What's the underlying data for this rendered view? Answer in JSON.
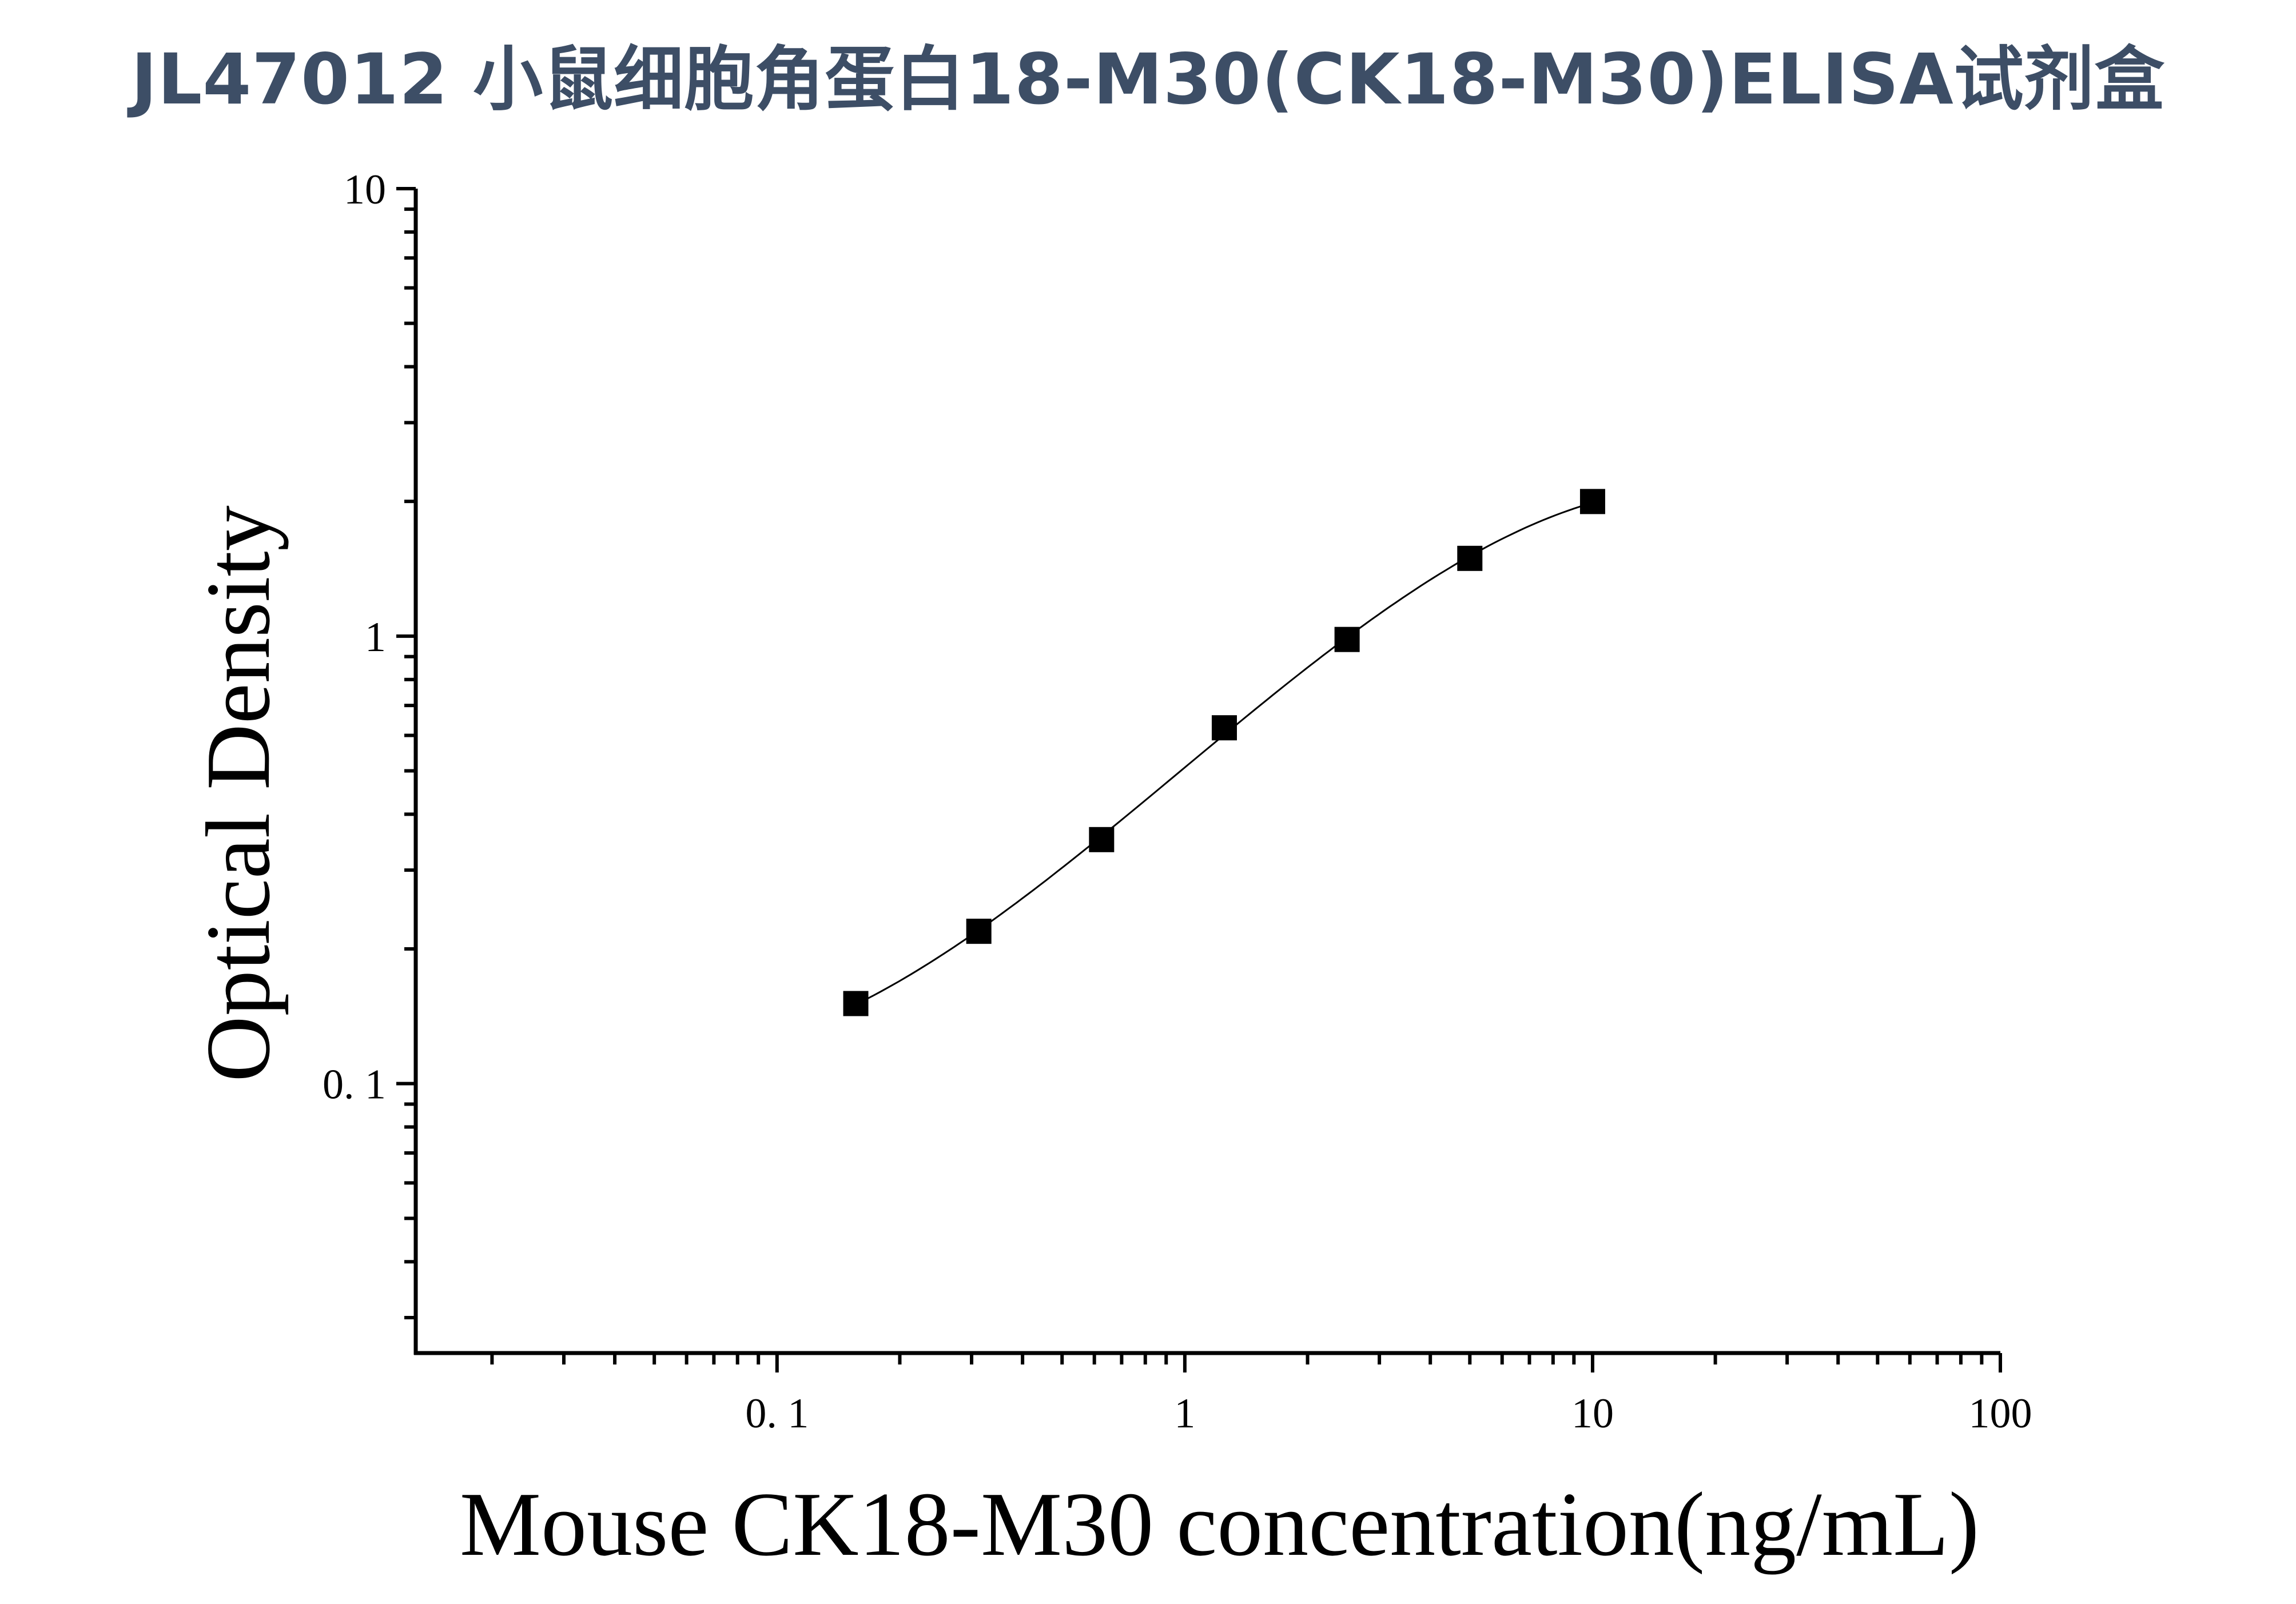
{
  "title": "JL47012 小鼠细胞角蛋白18-M30(CK18-M30)ELISA试剂盒",
  "chart_data": {
    "type": "scatter",
    "title": "JL47012 小鼠细胞角蛋白18-M30(CK18-M30)ELISA试剂盒",
    "xlabel": "Mouse CK18-M30 concentration(ng/mL)",
    "ylabel": "Optical Density",
    "x_scale": "log",
    "y_scale": "log",
    "xlim": [
      0.013,
      100
    ],
    "ylim": [
      0.025,
      10
    ],
    "x_tick_values": [
      0.1,
      1,
      10,
      100
    ],
    "x_tick_labels": [
      "0. 1",
      "1",
      "10",
      "100"
    ],
    "y_tick_values": [
      0.1,
      1,
      10
    ],
    "y_tick_labels": [
      "0. 1",
      "1",
      "10"
    ],
    "grid": false,
    "legend": "none",
    "marker": "square",
    "fit_line": true,
    "series": [
      {
        "x": [
          0.156,
          0.3125,
          0.625,
          1.25,
          2.5,
          5,
          10
        ],
        "y": [
          0.151,
          0.219,
          0.351,
          0.624,
          0.983,
          1.492,
          1.999
        ]
      }
    ],
    "colors": {
      "title": "#3d4e66",
      "marks": "#000000"
    }
  }
}
